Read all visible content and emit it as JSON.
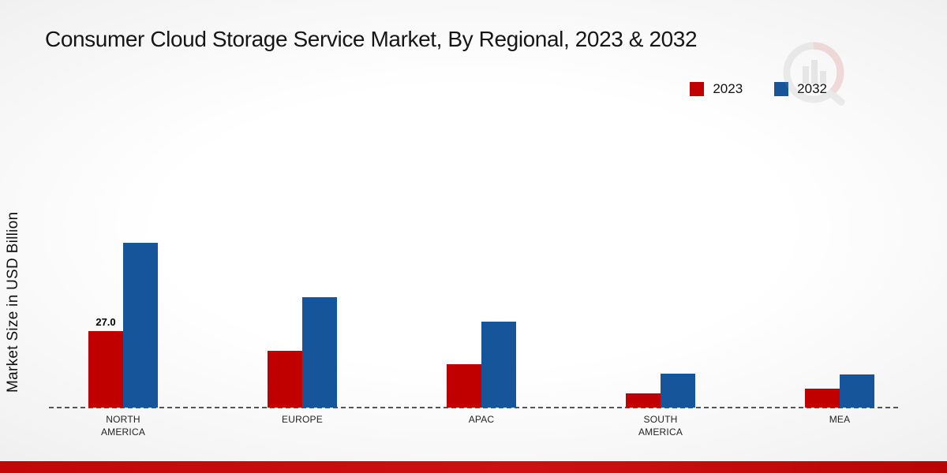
{
  "title": "Consumer Cloud Storage Service Market, By Regional, 2023 & 2032",
  "ylabel": "Market Size in USD Billion",
  "legend": [
    {
      "label": "2023",
      "color": "#c00000"
    },
    {
      "label": "2032",
      "color": "#17559b"
    }
  ],
  "footer_color": "#c40606",
  "chart_data": {
    "type": "bar",
    "title": "Consumer Cloud Storage Service Market, By Regional, 2023 & 2032",
    "ylabel": "Market Size in USD Billion",
    "categories": [
      "NORTH AMERICA",
      "EUROPE",
      "APAC",
      "SOUTH AMERICA",
      "MEA"
    ],
    "series": [
      {
        "name": "2023",
        "color": "#c00000",
        "values": [
          27.0,
          20.0,
          15.3,
          5.0,
          6.7
        ]
      },
      {
        "name": "2032",
        "color": "#17559b",
        "values": [
          58.0,
          38.8,
          30.4,
          12.0,
          11.8
        ]
      }
    ],
    "annotations": [
      {
        "series_index": 0,
        "category_index": 0,
        "text": "27.0"
      }
    ],
    "ylim": [
      0,
      62
    ],
    "grid": false,
    "legend_position": "top-right",
    "baseline_style": "dashed"
  }
}
